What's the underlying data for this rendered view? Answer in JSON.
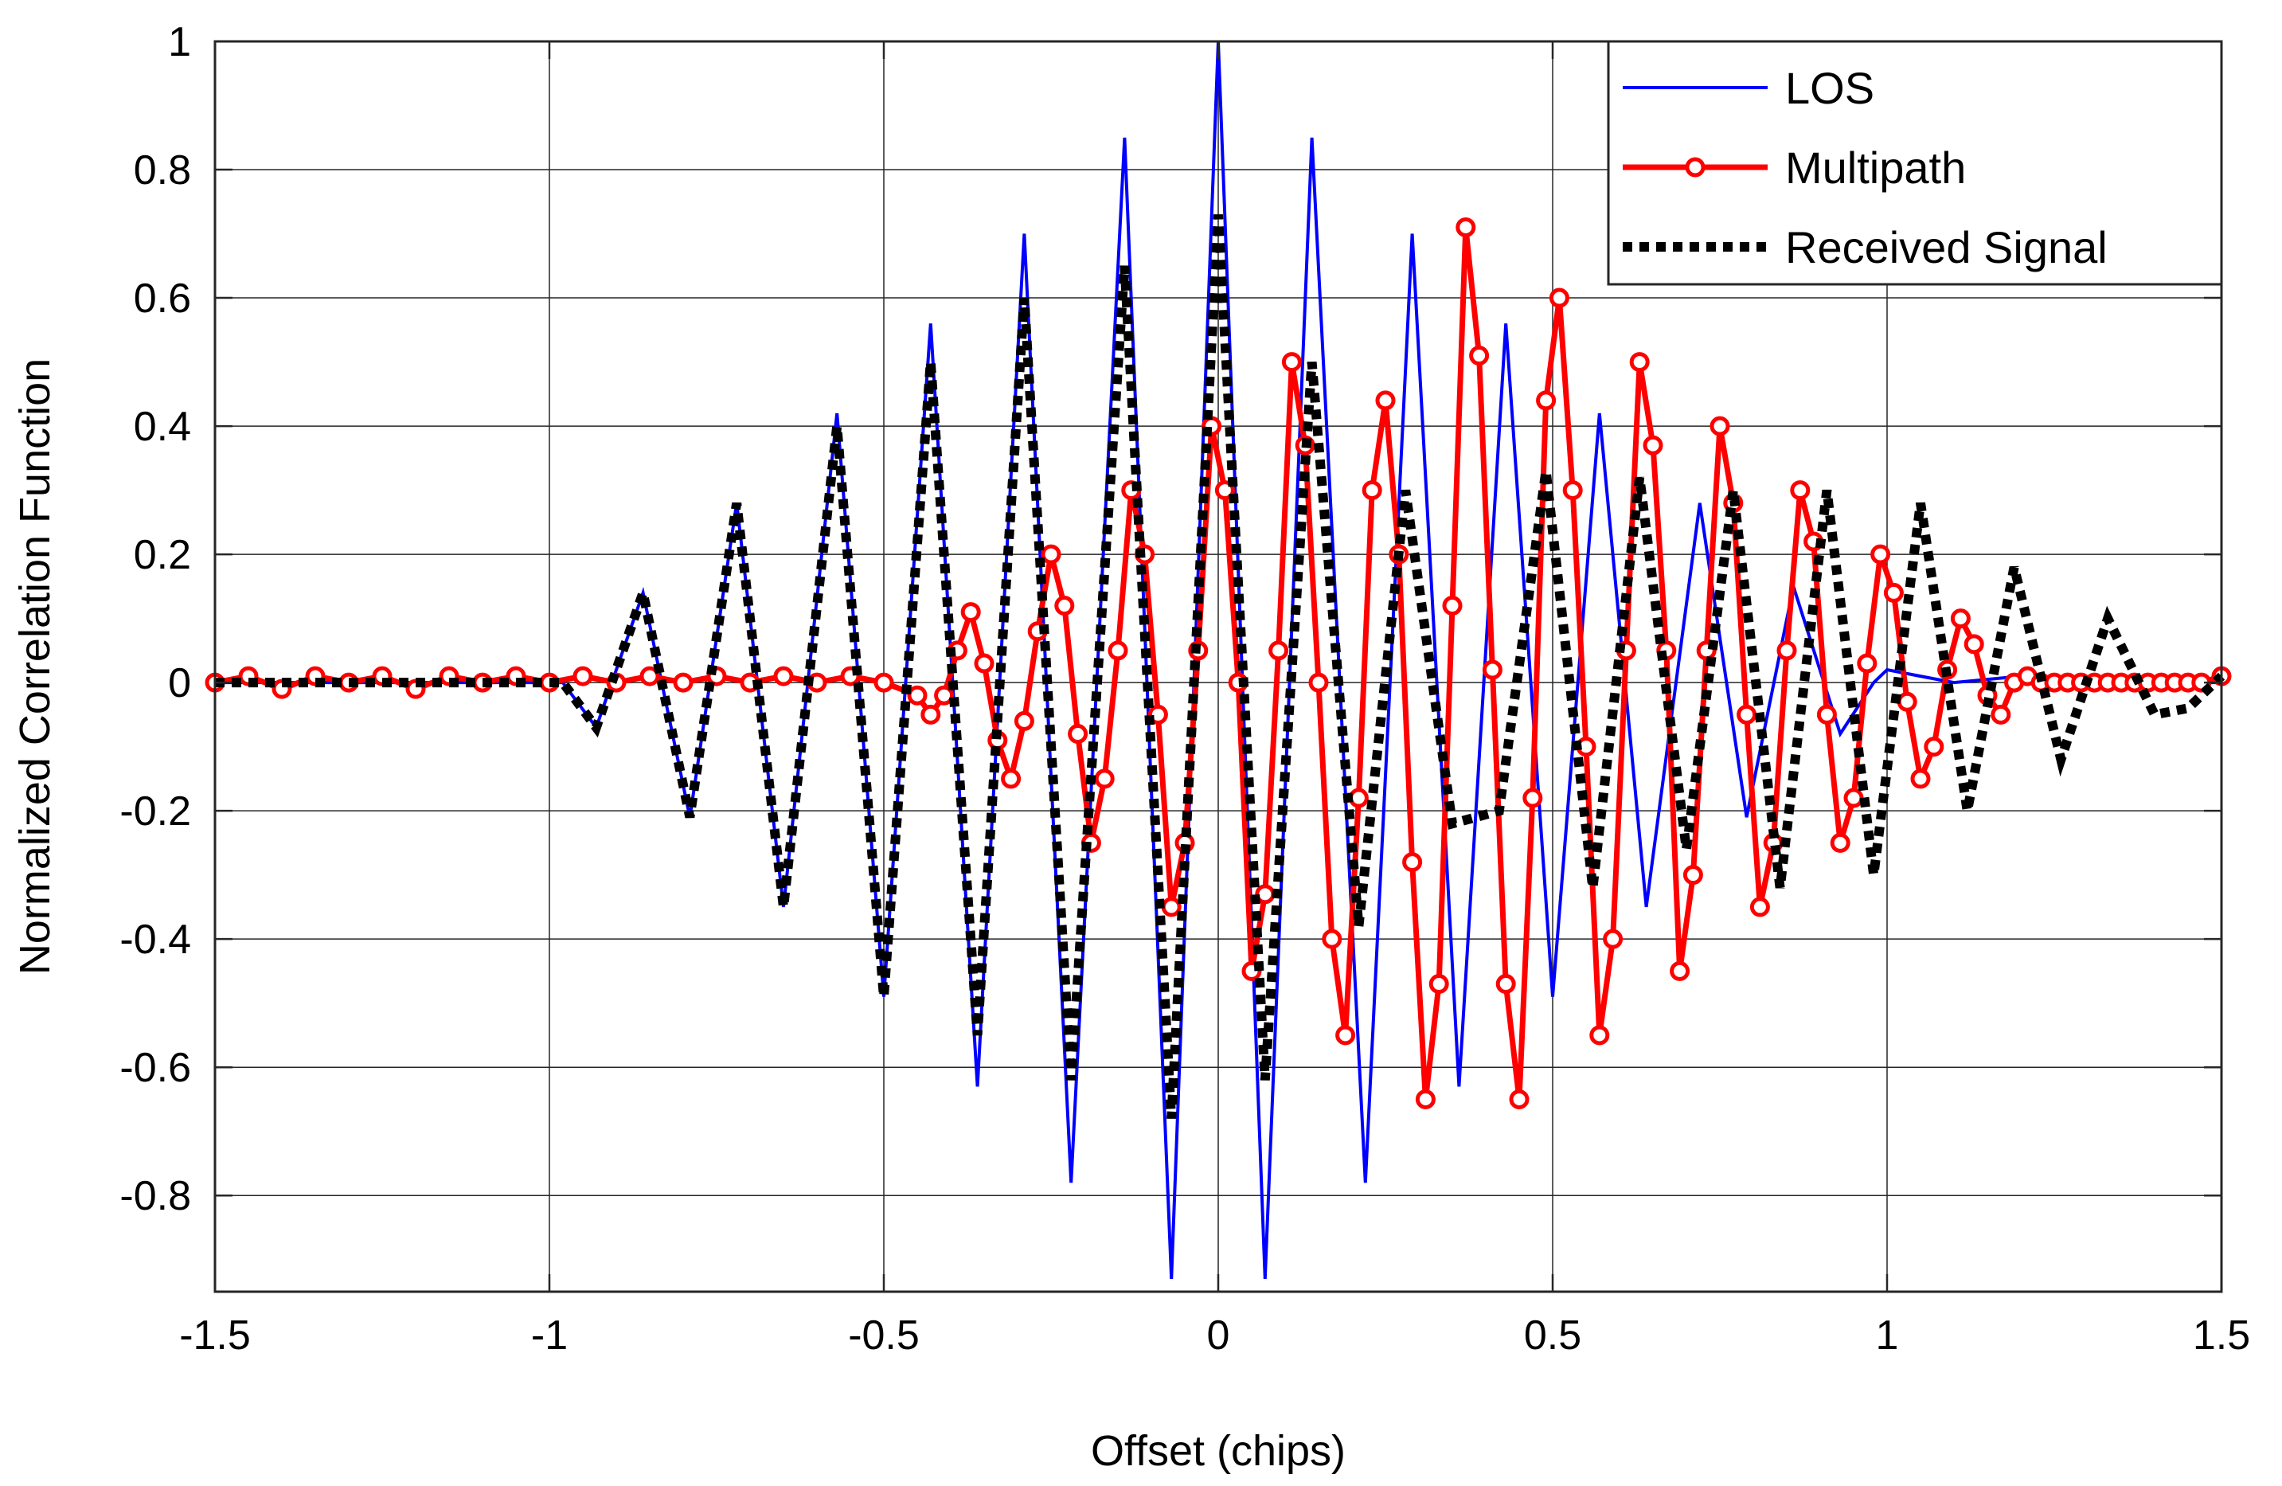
{
  "chart_data": {
    "type": "line",
    "title": "",
    "xlabel": "Offset (chips)",
    "ylabel": "Normalized Correlation Function",
    "xlim": [
      -1.5,
      1.5
    ],
    "ylim": [
      -0.95,
      1.0
    ],
    "grid": true,
    "legend_position": "top-right",
    "x_ticks": [
      -1.5,
      -1,
      -0.5,
      0,
      0.5,
      1,
      1.5
    ],
    "x_tick_labels": [
      "-1.5",
      "-1",
      "-0.5",
      "0",
      "0.5",
      "1",
      "1.5"
    ],
    "y_ticks": [
      1,
      0.8,
      0.6,
      0.4,
      0.2,
      0,
      -0.2,
      -0.4,
      -0.6,
      -0.8
    ],
    "y_tick_labels": [
      "1",
      "0.8",
      "0.6",
      "0.4",
      "0.2",
      "0",
      "-0.2",
      "-0.4",
      "-0.6",
      "-0.8"
    ],
    "series": [
      {
        "name": "LOS",
        "color": "#0000ff",
        "style": "solid",
        "x": [
          -1.5,
          -1.0,
          -0.98,
          -0.93,
          -0.86,
          -0.79,
          -0.72,
          -0.65,
          -0.57,
          -0.5,
          -0.43,
          -0.36,
          -0.29,
          -0.22,
          -0.14,
          -0.07,
          0,
          0.07,
          0.14,
          0.22,
          0.29,
          0.36,
          0.43,
          0.5,
          0.57,
          0.64,
          0.72,
          0.79,
          0.86,
          0.93,
          0.98,
          1.0,
          1.05,
          1.1,
          1.2,
          1.3,
          1.4,
          1.5
        ],
        "y": [
          0,
          0,
          0,
          -0.07,
          0.14,
          -0.21,
          0.28,
          -0.35,
          0.42,
          -0.49,
          0.56,
          -0.63,
          0.7,
          -0.78,
          0.85,
          -0.93,
          1.0,
          -0.93,
          0.85,
          -0.78,
          0.7,
          -0.63,
          0.56,
          -0.49,
          0.42,
          -0.35,
          0.28,
          -0.21,
          0.15,
          -0.08,
          0.0,
          0.02,
          0.01,
          0.0,
          0.01,
          0.0,
          0.0,
          0.0
        ]
      },
      {
        "name": "Multipath",
        "color": "#ff0000",
        "style": "solid-marker-circle",
        "x": [
          -1.5,
          -1.45,
          -1.4,
          -1.35,
          -1.3,
          -1.25,
          -1.2,
          -1.15,
          -1.1,
          -1.05,
          -1.0,
          -0.95,
          -0.9,
          -0.85,
          -0.8,
          -0.75,
          -0.7,
          -0.65,
          -0.6,
          -0.55,
          -0.5,
          -0.45,
          -0.43,
          -0.41,
          -0.39,
          -0.37,
          -0.35,
          -0.33,
          -0.31,
          -0.29,
          -0.27,
          -0.25,
          -0.23,
          -0.21,
          -0.19,
          -0.17,
          -0.15,
          -0.13,
          -0.11,
          -0.09,
          -0.07,
          -0.05,
          -0.03,
          -0.01,
          0.01,
          0.03,
          0.05,
          0.07,
          0.09,
          0.11,
          0.13,
          0.15,
          0.17,
          0.19,
          0.21,
          0.23,
          0.25,
          0.27,
          0.29,
          0.31,
          0.33,
          0.35,
          0.37,
          0.39,
          0.41,
          0.43,
          0.45,
          0.47,
          0.49,
          0.51,
          0.53,
          0.55,
          0.57,
          0.59,
          0.61,
          0.63,
          0.65,
          0.67,
          0.69,
          0.71,
          0.73,
          0.75,
          0.77,
          0.79,
          0.81,
          0.83,
          0.85,
          0.87,
          0.89,
          0.91,
          0.93,
          0.95,
          0.97,
          0.99,
          1.01,
          1.03,
          1.05,
          1.07,
          1.09,
          1.11,
          1.13,
          1.15,
          1.17,
          1.19,
          1.21,
          1.23,
          1.25,
          1.27,
          1.29,
          1.31,
          1.33,
          1.35,
          1.37,
          1.39,
          1.41,
          1.43,
          1.45,
          1.47,
          1.5
        ],
        "y": [
          0,
          0.01,
          -0.01,
          0.01,
          0,
          0.01,
          -0.01,
          0.01,
          0,
          0.01,
          0,
          0.01,
          0,
          0.01,
          0,
          0.01,
          0,
          0.01,
          0,
          0.01,
          0,
          -0.02,
          -0.05,
          -0.02,
          0.05,
          0.11,
          0.03,
          -0.09,
          -0.15,
          -0.06,
          0.08,
          0.2,
          0.12,
          -0.08,
          -0.25,
          -0.15,
          0.05,
          0.3,
          0.2,
          -0.05,
          -0.35,
          -0.25,
          0.05,
          0.4,
          0.3,
          0.0,
          -0.45,
          -0.33,
          0.05,
          0.5,
          0.37,
          0.0,
          -0.4,
          -0.55,
          -0.18,
          0.3,
          0.44,
          0.2,
          -0.28,
          -0.65,
          -0.47,
          0.12,
          0.71,
          0.51,
          0.02,
          -0.47,
          -0.65,
          -0.18,
          0.44,
          0.6,
          0.3,
          -0.1,
          -0.55,
          -0.4,
          0.05,
          0.5,
          0.37,
          0.05,
          -0.45,
          -0.3,
          0.05,
          0.4,
          0.28,
          -0.05,
          -0.35,
          -0.25,
          0.05,
          0.3,
          0.22,
          -0.05,
          -0.25,
          -0.18,
          0.03,
          0.2,
          0.14,
          -0.03,
          -0.15,
          -0.1,
          0.02,
          0.1,
          0.06,
          -0.02,
          -0.05,
          0.0,
          0.01,
          0.0,
          0.0,
          0.0,
          0.0,
          0.0,
          0.0,
          0.0,
          0.0,
          0.0,
          0.0,
          0.0,
          0.0,
          0.0,
          0.01
        ]
      },
      {
        "name": "Received Signal",
        "color": "#000000",
        "style": "dotted",
        "x": [
          -1.5,
          -1.0,
          -0.98,
          -0.93,
          -0.86,
          -0.79,
          -0.72,
          -0.65,
          -0.57,
          -0.5,
          -0.43,
          -0.36,
          -0.29,
          -0.22,
          -0.14,
          -0.07,
          0.0,
          0.07,
          0.14,
          0.21,
          0.28,
          0.35,
          0.42,
          0.49,
          0.56,
          0.63,
          0.7,
          0.77,
          0.84,
          0.91,
          0.98,
          1.05,
          1.12,
          1.19,
          1.26,
          1.33,
          1.4,
          1.45,
          1.5
        ],
        "y": [
          0,
          0,
          0,
          -0.07,
          0.14,
          -0.21,
          0.28,
          -0.35,
          0.4,
          -0.49,
          0.5,
          -0.55,
          0.6,
          -0.62,
          0.65,
          -0.68,
          0.73,
          -0.62,
          0.5,
          -0.38,
          0.3,
          -0.22,
          -0.2,
          0.33,
          -0.32,
          0.32,
          -0.26,
          0.3,
          -0.32,
          0.3,
          -0.3,
          0.28,
          -0.2,
          0.18,
          -0.12,
          0.1,
          -0.05,
          -0.04,
          0.01
        ]
      }
    ]
  }
}
